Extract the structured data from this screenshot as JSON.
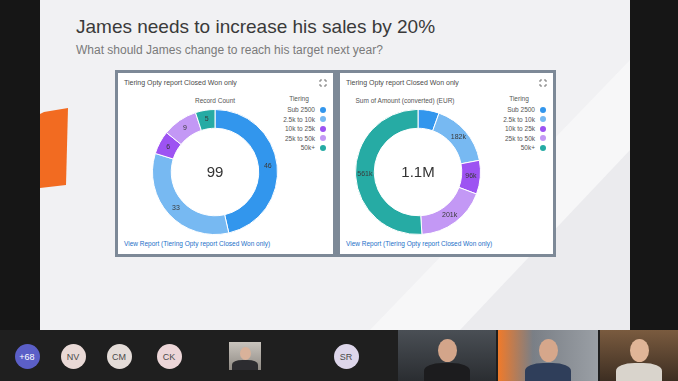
{
  "slide": {
    "title": "James needs to increase his sales by 20%",
    "subtitle": "What should James change to reach his target next year?"
  },
  "chart_data": [
    {
      "type": "doughnut",
      "card_title": "Tiering Opty report Closed Won only",
      "title": "Record Count",
      "center_text": "99",
      "categories": [
        "Sub 2500",
        "2.5k to 10k",
        "10k to 25k",
        "25k to 50k",
        "50k+"
      ],
      "values": [
        46,
        33,
        6,
        9,
        5
      ],
      "colors": [
        "#3296ed",
        "#77b9f2",
        "#9d53f2",
        "#c398f5",
        "#26aba4"
      ],
      "data_labels": true,
      "legend": "right",
      "legend_title": "Tiering",
      "link_text": "View Report (Tiering Opty report Closed Won only)"
    },
    {
      "type": "doughnut",
      "card_title": "Tiering Opty report Closed Won only",
      "title": "Sum of Amount (converted) (EUR)",
      "center_text": "1.1M",
      "categories": [
        "Sub 2500",
        "2.5k to 10k",
        "10k to 25k",
        "25k to 50k",
        "50k+"
      ],
      "values": [
        60000,
        182000,
        96000,
        201000,
        561000
      ],
      "value_labels": [
        null,
        "182k",
        "96k",
        "201k",
        "561k"
      ],
      "colors": [
        "#3296ed",
        "#77b9f2",
        "#9d53f2",
        "#c398f5",
        "#26aba4"
      ],
      "data_labels": true,
      "legend": "right",
      "legend_title": "Tiering",
      "link_text": "View Report (Tiering Opty report Closed Won only)"
    }
  ],
  "participants": [
    "+68",
    "NV",
    "CM",
    "CK",
    "SR"
  ]
}
